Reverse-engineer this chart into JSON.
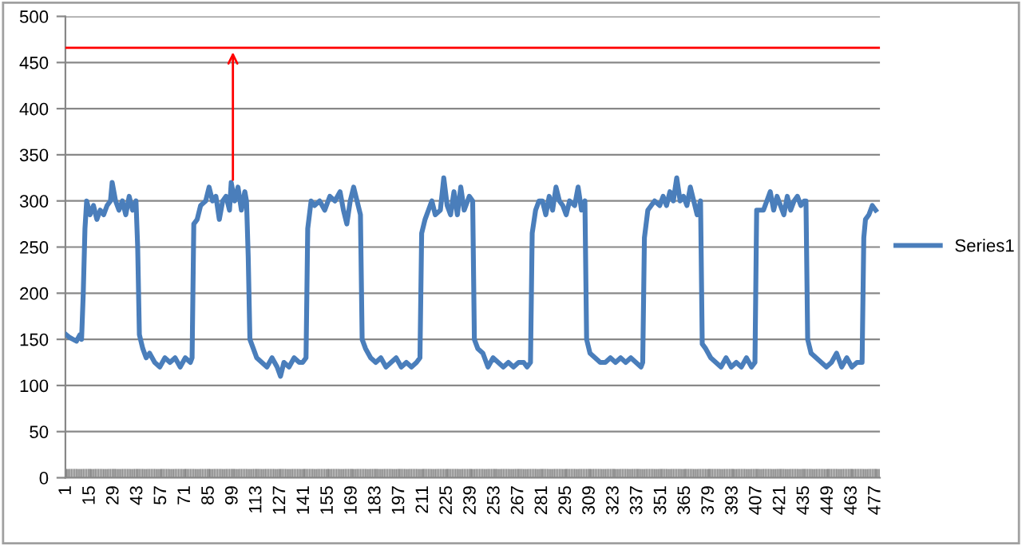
{
  "chart_data": {
    "type": "line",
    "series": [
      {
        "name": "Series1",
        "color": "#4a7ebb",
        "x": [
          1,
          3,
          5,
          7,
          9,
          10,
          11,
          12,
          13,
          15,
          17,
          19,
          21,
          23,
          25,
          27,
          28,
          30,
          32,
          34,
          36,
          38,
          40,
          42,
          43,
          44,
          46,
          48,
          50,
          53,
          56,
          59,
          62,
          65,
          68,
          71,
          74,
          75,
          76,
          78,
          80,
          83,
          85,
          87,
          89,
          91,
          93,
          95,
          97,
          98,
          100,
          102,
          104,
          106,
          107,
          108,
          109,
          111,
          113,
          116,
          119,
          122,
          125,
          127,
          129,
          132,
          135,
          138,
          140,
          142,
          143,
          145,
          147,
          150,
          153,
          156,
          159,
          162,
          164,
          166,
          168,
          170,
          172,
          174,
          175,
          177,
          180,
          183,
          186,
          189,
          192,
          195,
          198,
          201,
          204,
          207,
          209,
          210,
          212,
          214,
          216,
          218,
          221,
          223,
          225,
          227,
          229,
          231,
          233,
          235,
          238,
          240,
          241,
          243,
          246,
          249,
          252,
          255,
          258,
          261,
          264,
          267,
          270,
          272,
          274,
          275,
          277,
          279,
          281,
          283,
          285,
          287,
          289,
          291,
          293,
          295,
          297,
          300,
          302,
          304,
          306,
          307,
          309,
          312,
          315,
          318,
          321,
          324,
          327,
          330,
          333,
          336,
          339,
          340,
          341,
          343,
          345,
          347,
          350,
          352,
          354,
          356,
          358,
          360,
          362,
          364,
          366,
          368,
          370,
          372,
          374,
          375,
          377,
          380,
          383,
          386,
          389,
          392,
          395,
          398,
          401,
          404,
          406,
          407,
          409,
          411,
          413,
          415,
          417,
          419,
          421,
          423,
          425,
          427,
          429,
          431,
          433,
          435,
          436,
          437,
          439,
          442,
          445,
          448,
          451,
          454,
          457,
          460,
          463,
          466,
          469,
          470,
          471,
          473,
          475,
          477
        ],
        "values": [
          155,
          152,
          150,
          148,
          155,
          150,
          200,
          270,
          300,
          285,
          295,
          280,
          290,
          285,
          295,
          300,
          320,
          300,
          290,
          300,
          285,
          305,
          290,
          300,
          250,
          155,
          140,
          130,
          135,
          125,
          120,
          130,
          125,
          130,
          120,
          130,
          125,
          130,
          275,
          280,
          295,
          300,
          315,
          300,
          305,
          280,
          300,
          305,
          290,
          320,
          300,
          315,
          290,
          310,
          300,
          240,
          150,
          140,
          130,
          125,
          120,
          130,
          120,
          110,
          125,
          120,
          130,
          125,
          125,
          130,
          270,
          300,
          295,
          300,
          290,
          305,
          300,
          310,
          290,
          275,
          300,
          315,
          300,
          285,
          150,
          140,
          130,
          125,
          130,
          120,
          125,
          130,
          120,
          125,
          120,
          125,
          130,
          265,
          280,
          290,
          300,
          285,
          290,
          325,
          295,
          285,
          310,
          285,
          315,
          290,
          305,
          300,
          150,
          140,
          135,
          120,
          130,
          125,
          120,
          125,
          120,
          125,
          125,
          120,
          125,
          265,
          290,
          300,
          300,
          285,
          305,
          290,
          315,
          300,
          295,
          285,
          300,
          295,
          315,
          290,
          300,
          150,
          135,
          130,
          125,
          125,
          130,
          125,
          130,
          125,
          130,
          125,
          120,
          125,
          260,
          290,
          295,
          300,
          295,
          305,
          295,
          310,
          300,
          325,
          300,
          305,
          295,
          315,
          300,
          285,
          300,
          145,
          140,
          130,
          125,
          120,
          130,
          120,
          125,
          120,
          130,
          120,
          125,
          290,
          290,
          290,
          300,
          310,
          290,
          305,
          295,
          285,
          305,
          290,
          300,
          305,
          295,
          300,
          300,
          150,
          135,
          130,
          125,
          120,
          125,
          135,
          120,
          130,
          120,
          125,
          125,
          260,
          280,
          285,
          295,
          290
        ]
      }
    ],
    "xlim": [
      0.5,
      479.5
    ],
    "xticks": [
      1,
      15,
      29,
      43,
      57,
      71,
      85,
      99,
      113,
      127,
      141,
      155,
      169,
      183,
      197,
      211,
      225,
      239,
      253,
      267,
      281,
      295,
      309,
      323,
      337,
      351,
      365,
      379,
      393,
      407,
      421,
      435,
      449,
      463,
      477
    ],
    "ylim": [
      0,
      500
    ],
    "yticks": [
      0,
      50,
      100,
      150,
      200,
      250,
      300,
      350,
      400,
      450,
      500
    ],
    "grid": "y",
    "legend": "right",
    "ref_lines": [
      {
        "axis": "y",
        "value": 466,
        "color": "#ff0000"
      }
    ]
  }
}
